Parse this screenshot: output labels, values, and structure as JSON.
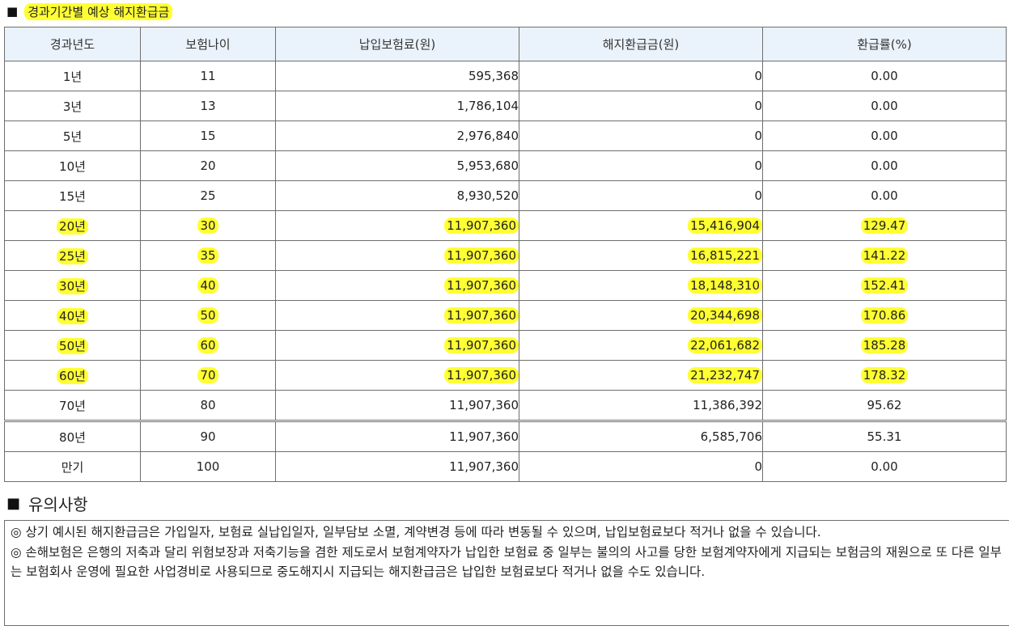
{
  "section_title": {
    "bullet": "■",
    "text": "경과기간별 예상 해지환급금"
  },
  "table": {
    "headers": [
      "경과년도",
      "보험나이",
      "납입보험료(원)",
      "해지환급금(원)",
      "환급률(%)"
    ],
    "rows": [
      {
        "year": "1년",
        "age": "11",
        "premium": "595,368",
        "refund": "0",
        "rate": "0.00",
        "highlighted": false
      },
      {
        "year": "3년",
        "age": "13",
        "premium": "1,786,104",
        "refund": "0",
        "rate": "0.00",
        "highlighted": false
      },
      {
        "year": "5년",
        "age": "15",
        "premium": "2,976,840",
        "refund": "0",
        "rate": "0.00",
        "highlighted": false
      },
      {
        "year": "10년",
        "age": "20",
        "premium": "5,953,680",
        "refund": "0",
        "rate": "0.00",
        "highlighted": false
      },
      {
        "year": "15년",
        "age": "25",
        "premium": "8,930,520",
        "refund": "0",
        "rate": "0.00",
        "highlighted": false
      },
      {
        "year": "20년",
        "age": "30",
        "premium": "11,907,360",
        "refund": "15,416,904",
        "rate": "129.47",
        "highlighted": true
      },
      {
        "year": "25년",
        "age": "35",
        "premium": "11,907,360",
        "refund": "16,815,221",
        "rate": "141.22",
        "highlighted": true
      },
      {
        "year": "30년",
        "age": "40",
        "premium": "11,907,360",
        "refund": "18,148,310",
        "rate": "152.41",
        "highlighted": true
      },
      {
        "year": "40년",
        "age": "50",
        "premium": "11,907,360",
        "refund": "20,344,698",
        "rate": "170.86",
        "highlighted": true
      },
      {
        "year": "50년",
        "age": "60",
        "premium": "11,907,360",
        "refund": "22,061,682",
        "rate": "185.28",
        "highlighted": true
      },
      {
        "year": "60년",
        "age": "70",
        "premium": "11,907,360",
        "refund": "21,232,747",
        "rate": "178.32",
        "highlighted": true
      },
      {
        "year": "70년",
        "age": "80",
        "premium": "11,907,360",
        "refund": "11,386,392",
        "rate": "95.62",
        "highlighted": false
      },
      {
        "year": "80년",
        "age": "90",
        "premium": "11,907,360",
        "refund": "6,585,706",
        "rate": "55.31",
        "highlighted": false
      },
      {
        "year": "만기",
        "age": "100",
        "premium": "11,907,360",
        "refund": "0",
        "rate": "0.00",
        "highlighted": false
      }
    ]
  },
  "notes": {
    "bullet": "■",
    "title": "유의사항",
    "items": [
      "◎ 상기 예시된 해지환급금은 가입일자, 보험료 실납입일자, 일부담보 소멸, 계약변경 등에 따라 변동될 수 있으며, 납입보험료보다 적거나 없을 수 있습니다.",
      "◎ 손해보험은 은행의 저축과 달리 위험보장과 저축기능을 겸한 제도로서 보험계약자가 납입한 보험료 중 일부는 불의의 사고를 당한  보험계약자에게 지급되는 보험금의 재원으로 또 다른 일부는 보험회사 운영에 필요한 사업경비로 사용되므로 중도해지시 지급되는 해지환급금은 납입한 보험료보다 적거나 없을 수도 있습니다."
    ]
  },
  "colors": {
    "highlight": "#ffff33",
    "header_bg": "#eaf3fb",
    "border": "#6e6e6e"
  }
}
